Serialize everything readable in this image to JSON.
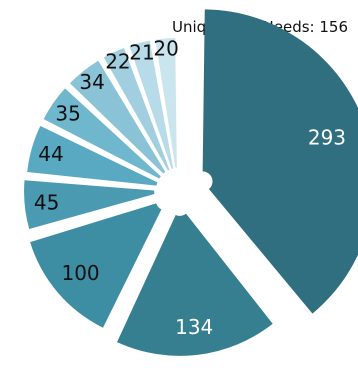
{
  "caption": "Unique Met Needs: 156",
  "colors": {
    "slices": [
      "#2f6f80",
      "#357f91",
      "#3d8ea3",
      "#4a9ab2",
      "#59a9c3",
      "#6fb7cc",
      "#8ac3d6",
      "#a2cfe0",
      "#b7dbe8",
      "#cbe5ef"
    ]
  },
  "chart_data": {
    "type": "pie",
    "title": "",
    "categories": [
      "",
      "",
      "",
      "",
      "",
      "",
      "",
      "",
      "",
      ""
    ],
    "values": [
      293,
      134,
      100,
      45,
      44,
      35,
      34,
      22,
      21,
      20
    ],
    "labels": [
      "293",
      "134",
      "100",
      "45",
      "44",
      "35",
      "34",
      "22",
      "21",
      "20"
    ],
    "exploded": true,
    "start_position": "top",
    "direction": "clockwise"
  }
}
